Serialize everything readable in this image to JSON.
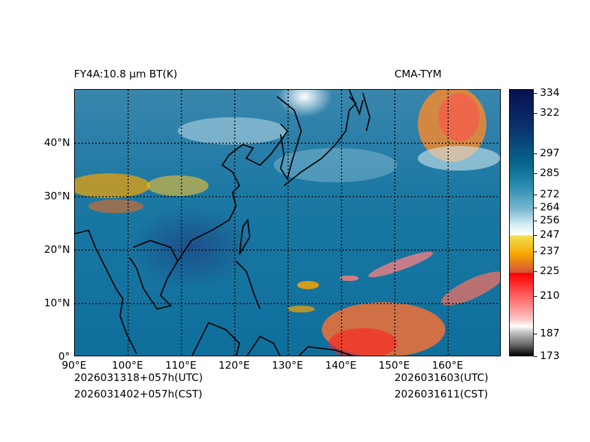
{
  "title_left": "FY4A:10.8 µm BT(K)",
  "title_right": "CMA-TYM",
  "init_utc": "2026031318+057h(UTC)",
  "init_cst": "2026031402+057h(CST)",
  "valid_utc": "2026031603(UTC)",
  "valid_cst": "2026031611(CST)",
  "map": {
    "lon_range": [
      90,
      170
    ],
    "lat_range": [
      0,
      50
    ],
    "lon_ticks": [
      {
        "v": 90,
        "label": "90°E"
      },
      {
        "v": 100,
        "label": "100°E"
      },
      {
        "v": 110,
        "label": "110°E"
      },
      {
        "v": 120,
        "label": "120°E"
      },
      {
        "v": 130,
        "label": "130°E"
      },
      {
        "v": 140,
        "label": "140°E"
      },
      {
        "v": 150,
        "label": "150°E"
      },
      {
        "v": 160,
        "label": "160°E"
      }
    ],
    "lat_ticks": [
      {
        "v": 0,
        "label": "0°"
      },
      {
        "v": 10,
        "label": "10°N"
      },
      {
        "v": 20,
        "label": "20°N"
      },
      {
        "v": 30,
        "label": "30°N"
      },
      {
        "v": 40,
        "label": "40°N"
      }
    ]
  },
  "colorbar": {
    "range": [
      173,
      336.5
    ],
    "ticks": [
      "334",
      "322",
      "297",
      "285",
      "272",
      "264",
      "256",
      "247",
      "237",
      "225",
      "210",
      "187",
      "173"
    ]
  }
}
